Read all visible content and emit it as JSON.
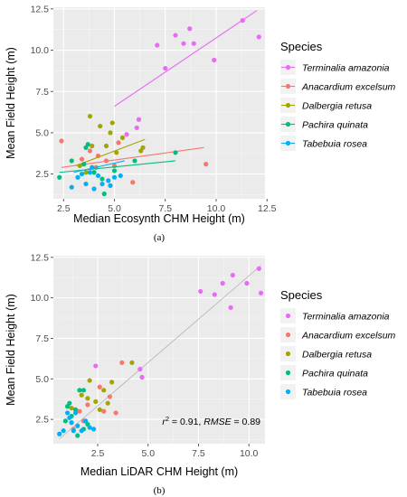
{
  "chart_data": [
    {
      "type": "scatter",
      "panel_label": "(a)",
      "xlabel": "Median Ecosynth CHM Height (m)",
      "ylabel": "Mean Field Height (m)",
      "xlim": [
        2.0,
        12.4
      ],
      "ylim": [
        1.0,
        12.6
      ],
      "xticks": [
        2.5,
        5.0,
        7.5,
        10.0,
        12.5
      ],
      "yticks": [
        2.5,
        5.0,
        7.5,
        10.0,
        12.5
      ],
      "xtick_labels": [
        "2.5",
        "5.0",
        "7.5",
        "10.0",
        "12.5"
      ],
      "ytick_labels": [
        "2.5",
        "5.0",
        "7.5",
        "10.0",
        "12.5"
      ],
      "grid": true,
      "legend": {
        "title": "Species",
        "placement": "right"
      },
      "series": [
        {
          "name": "Terminalia amazonia",
          "color": "#E76BF3",
          "points": [
            [
              7.1,
              10.3
            ],
            [
              7.5,
              8.9
            ],
            [
              8.0,
              10.9
            ],
            [
              8.4,
              10.4
            ],
            [
              8.7,
              11.3
            ],
            [
              8.9,
              10.4
            ],
            [
              9.9,
              9.4
            ],
            [
              11.3,
              11.8
            ],
            [
              12.1,
              10.8
            ],
            [
              6.2,
              5.8
            ],
            [
              5.6,
              4.9
            ],
            [
              6.1,
              5.3
            ]
          ],
          "fit": [
            [
              5.0,
              6.6
            ],
            [
              12.0,
              12.4
            ]
          ]
        },
        {
          "name": "Anacardium excelsum",
          "color": "#F8766D",
          "points": [
            [
              2.4,
              4.5
            ],
            [
              3.4,
              3.4
            ],
            [
              4.1,
              2.9
            ],
            [
              4.6,
              3.3
            ],
            [
              5.2,
              4.4
            ],
            [
              5.9,
              2.0
            ],
            [
              9.5,
              3.1
            ],
            [
              3.8,
              3.9
            ],
            [
              5.0,
              3.0
            ],
            [
              4.2,
              3.6
            ]
          ],
          "fit": [
            [
              2.4,
              2.9
            ],
            [
              9.4,
              4.1
            ]
          ]
        },
        {
          "name": "Dalbergia retusa",
          "color": "#A3A500",
          "points": [
            [
              3.8,
              6.0
            ],
            [
              4.3,
              5.4
            ],
            [
              4.9,
              5.6
            ],
            [
              3.3,
              3.0
            ],
            [
              3.9,
              4.2
            ],
            [
              4.6,
              4.2
            ],
            [
              5.1,
              3.8
            ],
            [
              5.4,
              4.7
            ],
            [
              6.3,
              3.9
            ],
            [
              6.4,
              4.1
            ],
            [
              3.6,
              2.6
            ],
            [
              4.8,
              5.0
            ]
          ],
          "fit": [
            [
              3.1,
              3.0
            ],
            [
              6.5,
              4.6
            ]
          ]
        },
        {
          "name": "Pachira quinata",
          "color": "#00BF7D",
          "points": [
            [
              2.3,
              2.3
            ],
            [
              2.9,
              3.3
            ],
            [
              3.5,
              3.1
            ],
            [
              4.0,
              2.6
            ],
            [
              4.4,
              2.2
            ],
            [
              5.0,
              2.7
            ],
            [
              6.0,
              3.3
            ],
            [
              8.0,
              3.8
            ],
            [
              3.6,
              4.1
            ],
            [
              3.7,
              4.3
            ],
            [
              4.5,
              1.3
            ]
          ],
          "fit": [
            [
              2.3,
              2.6
            ],
            [
              8.0,
              3.3
            ]
          ]
        },
        {
          "name": "Tabebuia rosea",
          "color": "#00B0F6",
          "points": [
            [
              2.9,
              1.7
            ],
            [
              3.2,
              2.3
            ],
            [
              3.4,
              2.5
            ],
            [
              3.6,
              1.9
            ],
            [
              3.8,
              2.6
            ],
            [
              4.0,
              1.6
            ],
            [
              4.2,
              2.4
            ],
            [
              4.4,
              1.9
            ],
            [
              4.7,
              2.1
            ],
            [
              5.0,
              2.3
            ],
            [
              5.3,
              2.4
            ],
            [
              3.9,
              2.9
            ],
            [
              4.8,
              1.8
            ]
          ],
          "fit": [
            [
              3.0,
              2.6
            ],
            [
              5.5,
              3.3
            ]
          ]
        }
      ]
    },
    {
      "type": "scatter",
      "panel_label": "(b)",
      "xlabel": "Median LiDAR CHM Height (m)",
      "ylabel": "Mean Field Height (m)",
      "xlim": [
        0.3,
        10.8
      ],
      "ylim": [
        1.0,
        12.6
      ],
      "xticks": [
        2.5,
        5.0,
        7.5,
        10.0
      ],
      "yticks": [
        2.5,
        5.0,
        7.5,
        10.0,
        12.5
      ],
      "xtick_labels": [
        "2.5",
        "5.0",
        "7.5",
        "10.0"
      ],
      "ytick_labels": [
        "2.5",
        "5.0",
        "7.5",
        "10.0",
        "12.5"
      ],
      "grid": true,
      "annotation": {
        "prefix": "r",
        "sup": "2",
        "r2_value": " = 0.91, ",
        "rmse_label": "RMSE",
        "rmse_value": " = 0.89"
      },
      "reference_line": [
        [
          0.6,
          1.3
        ],
        [
          10.6,
          12.0
        ]
      ],
      "legend": {
        "title": "Species",
        "placement": "right"
      },
      "series": [
        {
          "name": "Terminalia amazonia",
          "color": "#E76BF3",
          "points": [
            [
              7.6,
              10.4
            ],
            [
              8.3,
              10.2
            ],
            [
              8.7,
              10.9
            ],
            [
              9.1,
              9.4
            ],
            [
              9.2,
              11.4
            ],
            [
              9.9,
              10.9
            ],
            [
              10.5,
              11.8
            ],
            [
              10.6,
              10.3
            ],
            [
              2.4,
              5.8
            ],
            [
              4.6,
              5.6
            ],
            [
              4.7,
              5.1
            ]
          ]
        },
        {
          "name": "Anacardium excelsum",
          "color": "#F8766D",
          "points": [
            [
              1.3,
              1.9
            ],
            [
              1.6,
              3.0
            ],
            [
              1.8,
              2.4
            ],
            [
              2.6,
              4.5
            ],
            [
              3.1,
              3.9
            ],
            [
              3.4,
              2.9
            ],
            [
              3.7,
              6.0
            ],
            [
              2.0,
              3.4
            ],
            [
              2.8,
              3.0
            ]
          ]
        },
        {
          "name": "Dalbergia retusa",
          "color": "#A3A500",
          "points": [
            [
              1.7,
              4.0
            ],
            [
              2.1,
              4.9
            ],
            [
              2.4,
              3.6
            ],
            [
              2.8,
              4.3
            ],
            [
              3.2,
              4.8
            ],
            [
              4.2,
              6.0
            ],
            [
              1.2,
              3.2
            ],
            [
              2.0,
              3.8
            ],
            [
              3.0,
              3.5
            ],
            [
              2.6,
              3.1
            ]
          ]
        },
        {
          "name": "Pachira quinata",
          "color": "#00BF7D",
          "points": [
            [
              0.9,
              2.4
            ],
            [
              1.0,
              3.3
            ],
            [
              1.1,
              3.5
            ],
            [
              1.2,
              2.7
            ],
            [
              1.4,
              3.1
            ],
            [
              1.6,
              4.3
            ],
            [
              1.8,
              4.3
            ],
            [
              2.0,
              2.2
            ],
            [
              1.5,
              1.5
            ],
            [
              1.2,
              2.3
            ],
            [
              1.8,
              1.9
            ]
          ]
        },
        {
          "name": "Tabebuia rosea",
          "color": "#00B0F6",
          "points": [
            [
              0.6,
              1.6
            ],
            [
              0.8,
              1.8
            ],
            [
              1.0,
              2.9
            ],
            [
              1.2,
              2.3
            ],
            [
              1.3,
              1.8
            ],
            [
              1.5,
              2.1
            ],
            [
              1.7,
              1.8
            ],
            [
              1.9,
              2.4
            ],
            [
              2.1,
              2.0
            ],
            [
              2.3,
              1.9
            ],
            [
              1.4,
              2.9
            ],
            [
              1.1,
              2.6
            ]
          ]
        }
      ]
    }
  ]
}
